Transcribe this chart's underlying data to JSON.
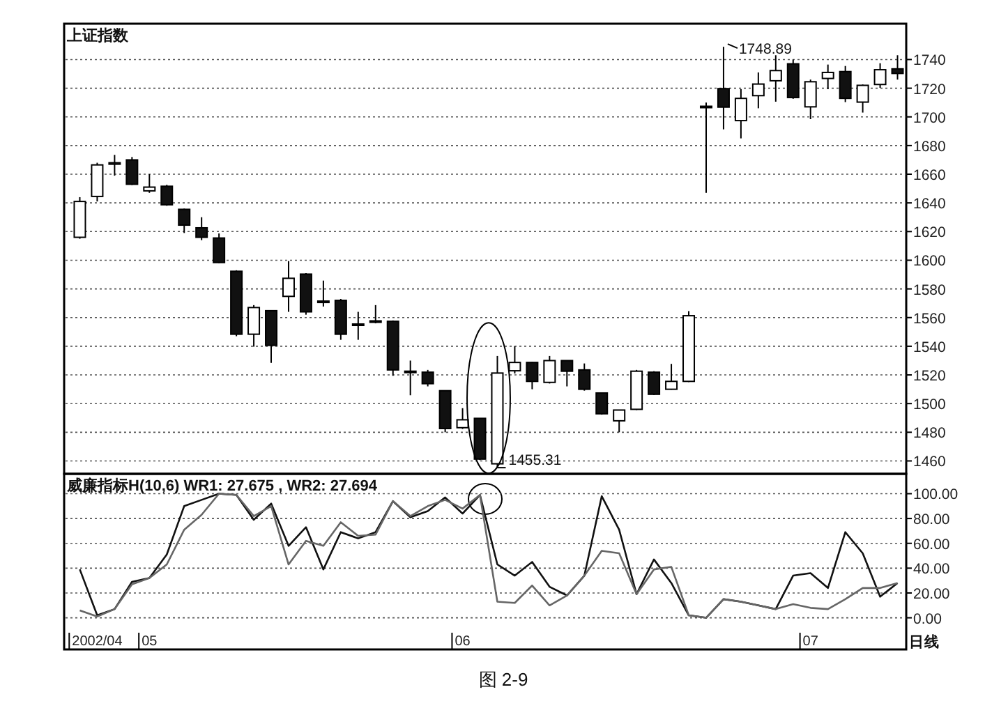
{
  "chart_data": [
    {
      "type": "candlestick",
      "title": "上证指数",
      "categories": [
        null,
        "2002/04",
        null,
        null,
        "05",
        null,
        null,
        null,
        null,
        null,
        null,
        null,
        null,
        null,
        null,
        null,
        null,
        null,
        null,
        null,
        null,
        null,
        "06",
        null,
        null,
        null,
        null,
        null,
        null,
        null,
        null,
        null,
        null,
        null,
        null,
        null,
        null,
        null,
        null,
        null,
        null,
        null,
        "07",
        null,
        null,
        null,
        null,
        null
      ],
      "ohlc": [
        [
          1616,
          1644,
          1615,
          1641
        ],
        [
          1644.5,
          1668,
          1641,
          1666.5
        ],
        [
          1667,
          1673.5,
          1659,
          1668
        ],
        [
          1670,
          1672,
          1652.5,
          1653
        ],
        [
          1648.4,
          1660,
          1647,
          1651
        ],
        [
          1651.6,
          1652.6,
          1638,
          1638.7
        ],
        [
          1635.5,
          1636,
          1619,
          1624.5
        ],
        [
          1622.6,
          1630,
          1614,
          1616
        ],
        [
          1615.5,
          1618.7,
          1598,
          1598.4
        ],
        [
          1592.3,
          1593,
          1547,
          1548.4
        ],
        [
          1548.4,
          1568.7,
          1539.7,
          1567
        ],
        [
          1564.8,
          1565,
          1528.4,
          1540.6
        ],
        [
          1574.8,
          1599.4,
          1564,
          1587.4
        ],
        [
          1590.3,
          1591,
          1562,
          1564
        ],
        [
          1571,
          1585.8,
          1567.7,
          1571.5
        ],
        [
          1572,
          1573,
          1544.5,
          1548.4
        ],
        [
          1555,
          1564,
          1544.5,
          1555.5
        ],
        [
          1557.4,
          1568.7,
          1556,
          1557.7
        ],
        [
          1557.4,
          1558,
          1519.4,
          1523.5
        ],
        [
          1522.4,
          1530,
          1505.8,
          1522.6
        ],
        [
          1521.9,
          1523.5,
          1512,
          1513.9
        ],
        [
          1509,
          1509,
          1480,
          1482.6
        ],
        [
          1483.2,
          1496.8,
          1482.3,
          1488.7
        ],
        [
          1489.7,
          1489.7,
          1460.6,
          1461.3
        ],
        [
          1458,
          1533.2,
          1455.31,
          1521.3
        ],
        [
          1522.9,
          1540,
          1521,
          1528.7
        ],
        [
          1528.7,
          1529,
          1510,
          1515.5
        ],
        [
          1514.8,
          1533.2,
          1514,
          1530
        ],
        [
          1530,
          1530,
          1512,
          1522.6
        ],
        [
          1523.5,
          1528,
          1509,
          1510
        ],
        [
          1507.4,
          1507.4,
          1492.3,
          1492.9
        ],
        [
          1488,
          1495.5,
          1480,
          1495.5
        ],
        [
          1496,
          1523.5,
          1495.5,
          1522.6
        ],
        [
          1521.9,
          1522.6,
          1506,
          1506.5
        ],
        [
          1510,
          1527.7,
          1509.7,
          1515.5
        ],
        [
          1515.5,
          1564.5,
          1515,
          1561.3
        ],
        [
          1707.2,
          1710,
          1647,
          1707.4
        ],
        [
          1719.7,
          1748.89,
          1691.3,
          1706.8
        ],
        [
          1697.4,
          1719.4,
          1685,
          1712.9
        ],
        [
          1714.8,
          1731,
          1706,
          1722.9
        ],
        [
          1725.2,
          1743,
          1710.6,
          1732.3
        ],
        [
          1737,
          1740,
          1712.6,
          1713.5
        ],
        [
          1707,
          1726,
          1698.4,
          1724.5
        ],
        [
          1726.8,
          1736.5,
          1719.4,
          1731
        ],
        [
          1731.6,
          1735.5,
          1710.3,
          1712.9
        ],
        [
          1710.3,
          1722.6,
          1703,
          1722
        ],
        [
          1722.6,
          1737.4,
          1720.3,
          1732.9
        ],
        [
          1733.5,
          1743,
          1726,
          1730.3
        ]
      ],
      "ylim": [
        1451,
        1765
      ],
      "yticks": [
        1460,
        1480,
        1500,
        1520,
        1540,
        1560,
        1580,
        1600,
        1620,
        1640,
        1660,
        1680,
        1700,
        1720,
        1740
      ],
      "grid": "y",
      "tick_labels": "y",
      "annotations": [
        "1748.89",
        "1455.31"
      ]
    },
    {
      "type": "line",
      "title": "威廉指标H(10,6)  WR1: 27.675 , WR2: 27.694",
      "categories": [
        null,
        "2002/04",
        null,
        null,
        "05",
        null,
        null,
        null,
        null,
        null,
        null,
        null,
        null,
        null,
        null,
        null,
        null,
        null,
        null,
        null,
        null,
        null,
        "06",
        null,
        null,
        null,
        null,
        null,
        null,
        null,
        null,
        null,
        null,
        null,
        null,
        null,
        null,
        null,
        null,
        null,
        null,
        null,
        "07",
        null,
        null,
        null,
        null,
        null
      ],
      "series": [
        {
          "color": "#111111",
          "values": [
            39,
            2,
            7,
            29,
            32,
            51,
            90,
            95,
            100,
            99,
            79,
            92,
            58,
            73,
            39,
            69,
            64,
            69,
            94,
            81,
            86,
            97,
            84,
            99,
            43,
            34,
            45,
            25,
            18,
            34,
            98,
            71,
            19,
            47,
            28,
            2,
            0,
            15,
            13,
            10,
            7,
            34,
            36,
            24,
            69,
            52,
            17,
            28
          ]
        },
        {
          "color": "#666666",
          "values": [
            6,
            1,
            7,
            27,
            32,
            43,
            71,
            83,
            100,
            99,
            82,
            90,
            43,
            62,
            58,
            77,
            66,
            67,
            94,
            82,
            90,
            95,
            88,
            99,
            13,
            12,
            26,
            10,
            18,
            34,
            54,
            52,
            19,
            39,
            41,
            2,
            0,
            15,
            13,
            10,
            7,
            11,
            8,
            7,
            15,
            24,
            24,
            28
          ]
        }
      ],
      "ylim": [
        -25.5,
        116
      ],
      "yticks": [
        {
          "value": 0,
          "label": "0.00"
        },
        {
          "value": 20,
          "label": "20.00"
        },
        {
          "value": 40,
          "label": "40.00"
        },
        {
          "value": 60,
          "label": "60.00"
        },
        {
          "value": 80,
          "label": "80.00"
        },
        {
          "value": 100,
          "label": "100.00"
        }
      ],
      "grid": "y",
      "annotations": [
        "日线",
        "图 2-9"
      ]
    }
  ]
}
